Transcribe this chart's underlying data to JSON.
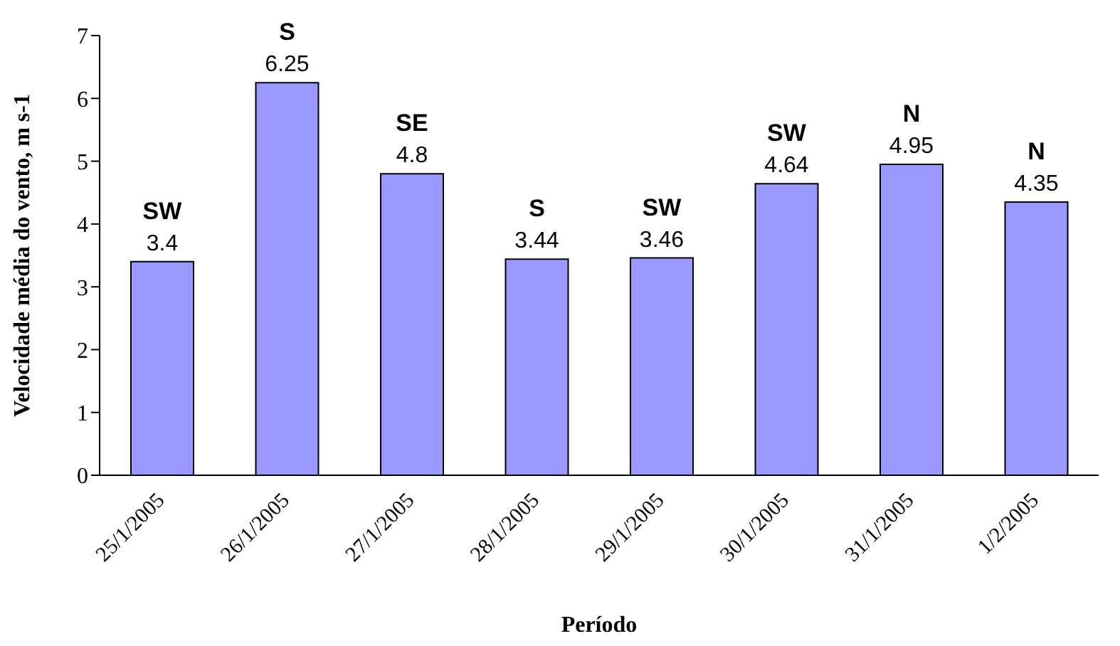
{
  "chart_data": {
    "type": "bar",
    "xlabel": "Período",
    "ylabel": "Velocidade média do vento, m s-1",
    "categories": [
      "25/1/2005",
      "26/1/2005",
      "27/1/2005",
      "28/1/2005",
      "29/1/2005",
      "30/1/2005",
      "31/1/2005",
      "1/2/2005"
    ],
    "values": [
      3.4,
      6.25,
      4.8,
      3.44,
      3.46,
      4.64,
      4.95,
      4.35
    ],
    "color": "#9999ff",
    "ylim": [
      0,
      7
    ],
    "yticks": [
      0,
      1,
      2,
      3,
      4,
      5,
      6,
      7
    ],
    "grid": false,
    "legend": false,
    "data_labels": true,
    "annotations": [
      {
        "text": "SW",
        "x": "25/1/2005",
        "y": 3.4
      },
      {
        "text": "S",
        "x": "26/1/2005",
        "y": 6.25
      },
      {
        "text": "SE",
        "x": "27/1/2005",
        "y": 4.8
      },
      {
        "text": "S",
        "x": "28/1/2005",
        "y": 3.44
      },
      {
        "text": "SW",
        "x": "29/1/2005",
        "y": 3.46
      },
      {
        "text": "SW",
        "x": "30/1/2005",
        "y": 4.64
      },
      {
        "text": "N",
        "x": "31/1/2005",
        "y": 4.95
      },
      {
        "text": "N",
        "x": "1/2/2005",
        "y": 4.35
      }
    ]
  }
}
